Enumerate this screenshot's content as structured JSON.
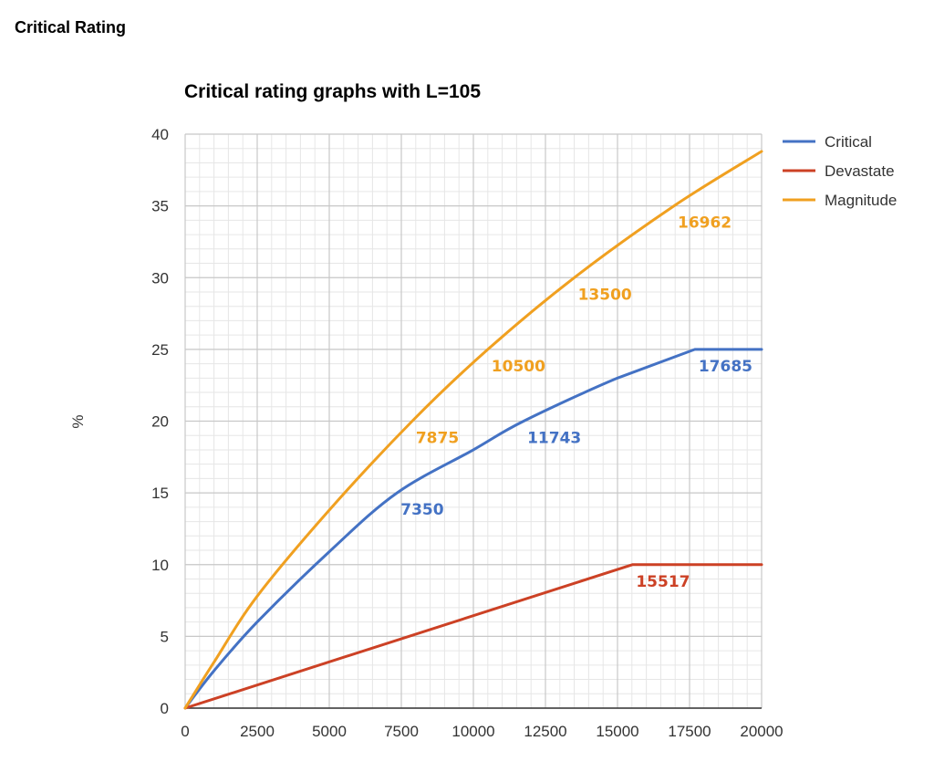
{
  "page": {
    "heading": "Critical Rating"
  },
  "chart_data": {
    "type": "line",
    "title": "Critical rating graphs with L=105",
    "xlabel": "",
    "ylabel": "%",
    "xlim": [
      0,
      20000
    ],
    "ylim": [
      0,
      40
    ],
    "x_ticks": [
      0,
      2500,
      5000,
      7500,
      10000,
      12500,
      15000,
      17500,
      20000
    ],
    "y_ticks": [
      0,
      5,
      10,
      15,
      20,
      25,
      30,
      35,
      40
    ],
    "grid": true,
    "minor_grid": true,
    "legend_position": "right",
    "series": [
      {
        "name": "Critical",
        "color": "#4472c4",
        "points": [
          [
            0,
            0
          ],
          [
            1000,
            2.6
          ],
          [
            2500,
            6.0
          ],
          [
            5000,
            10.9
          ],
          [
            7350,
            15.0
          ],
          [
            10000,
            18.0
          ],
          [
            11743,
            20.0
          ],
          [
            15000,
            23.0
          ],
          [
            17685,
            25.0
          ],
          [
            20000,
            25.0
          ]
        ]
      },
      {
        "name": "Devastate",
        "color": "#cc4125",
        "points": [
          [
            0,
            0
          ],
          [
            15517,
            10.0
          ],
          [
            20000,
            10.0
          ]
        ]
      },
      {
        "name": "Magnitude",
        "color": "#f0a020",
        "points": [
          [
            0,
            0
          ],
          [
            1000,
            3.2
          ],
          [
            2500,
            7.8
          ],
          [
            5000,
            13.8
          ],
          [
            7875,
            20.0
          ],
          [
            10500,
            25.0
          ],
          [
            13500,
            30.0
          ],
          [
            16962,
            35.0
          ],
          [
            20000,
            38.8
          ]
        ]
      }
    ],
    "annotations": [
      {
        "text": "7350",
        "x": 7350,
        "y": 15.0,
        "series": "Critical",
        "color": "#4472c4"
      },
      {
        "text": "11743",
        "x": 11743,
        "y": 20.0,
        "series": "Critical",
        "color": "#4472c4"
      },
      {
        "text": "17685",
        "x": 17685,
        "y": 25.0,
        "series": "Critical",
        "color": "#4472c4"
      },
      {
        "text": "15517",
        "x": 15517,
        "y": 10.0,
        "series": "Devastate",
        "color": "#cc4125"
      },
      {
        "text": "7875",
        "x": 7875,
        "y": 20.0,
        "series": "Magnitude",
        "color": "#f0a020"
      },
      {
        "text": "10500",
        "x": 10500,
        "y": 25.0,
        "series": "Magnitude",
        "color": "#f0a020"
      },
      {
        "text": "13500",
        "x": 13500,
        "y": 30.0,
        "series": "Magnitude",
        "color": "#f0a020"
      },
      {
        "text": "16962",
        "x": 16962,
        "y": 35.0,
        "series": "Magnitude",
        "color": "#f0a020"
      }
    ]
  }
}
